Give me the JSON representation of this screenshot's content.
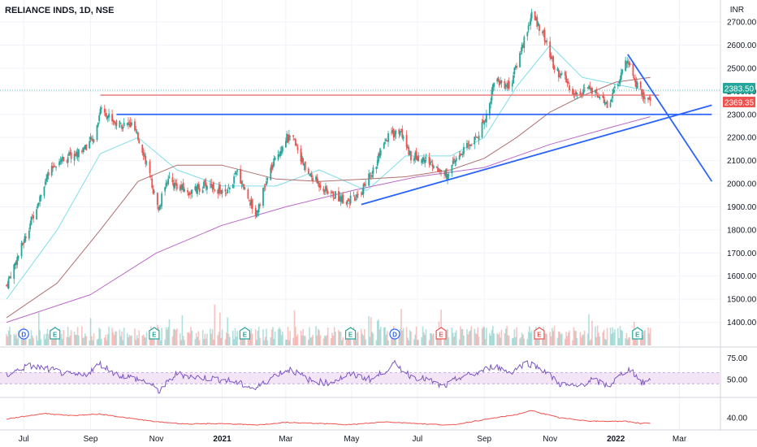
{
  "header": {
    "title": "RELIANCE INDS, 1D, NSE",
    "currency": "INR"
  },
  "price_tags": [
    {
      "label": "2383.50",
      "value": 2383.5,
      "color": "#26a69a"
    },
    {
      "label": "2369.35",
      "value": 2369.35,
      "color": "#ef5350"
    }
  ],
  "colors": {
    "up": "#26a69a",
    "down": "#ef5350",
    "trendline": "#2962ff",
    "resistance": "#e57373",
    "ma_fast": "#80deea",
    "ma_mid": "#b0706f",
    "ma_slow": "#ba68c8",
    "rsi_line": "#7e57c2",
    "rsi_band": "#f3e5f5",
    "indicator2": "#ef5350"
  },
  "chart_data": [
    {
      "type": "candlestick",
      "title": "RELIANCE INDS, 1D, NSE",
      "ylim": [
        1300,
        2760
      ],
      "x_ticks": [
        "Jul",
        "Sep",
        "Nov",
        "2021",
        "Mar",
        "May",
        "Jul",
        "Sep",
        "Nov",
        "2022",
        "Mar"
      ],
      "y_ticks": [
        1400,
        1500,
        1600,
        1700,
        1800,
        1900,
        2000,
        2100,
        2200,
        2300,
        2400,
        2500,
        2600,
        2700
      ],
      "y_tick_labels": [
        "1400.00",
        "1500.00",
        "1600.00",
        "1700.00",
        "1800.00",
        "1900.00",
        "2000.00",
        "2100.00",
        "2200.00",
        "2300.00",
        "2400.00",
        "2500.00",
        "2600.00",
        "2700.00"
      ],
      "price_anchors": [
        [
          "2020-06-15",
          1560
        ],
        [
          "2020-07-01",
          1750
        ],
        [
          "2020-07-20",
          2000
        ],
        [
          "2020-08-01",
          2100
        ],
        [
          "2020-08-20",
          2130
        ],
        [
          "2020-09-05",
          2200
        ],
        [
          "2020-09-10",
          2330
        ],
        [
          "2020-09-25",
          2260
        ],
        [
          "2020-10-10",
          2250
        ],
        [
          "2020-10-20",
          2140
        ],
        [
          "2020-11-03",
          1880
        ],
        [
          "2020-11-10",
          2020
        ],
        [
          "2020-12-01",
          1960
        ],
        [
          "2020-12-20",
          2000
        ],
        [
          "2021-01-05",
          1950
        ],
        [
          "2021-01-15",
          2050
        ],
        [
          "2021-02-01",
          1870
        ],
        [
          "2021-02-15",
          2060
        ],
        [
          "2021-03-01",
          2200
        ],
        [
          "2021-03-10",
          2180
        ],
        [
          "2021-03-20",
          2050
        ],
        [
          "2021-04-10",
          1960
        ],
        [
          "2021-04-25",
          1930
        ],
        [
          "2021-05-05",
          1930
        ],
        [
          "2021-05-20",
          2050
        ],
        [
          "2021-06-05",
          2210
        ],
        [
          "2021-06-15",
          2230
        ],
        [
          "2021-06-25",
          2120
        ],
        [
          "2021-07-10",
          2100
        ],
        [
          "2021-07-28",
          2040
        ],
        [
          "2021-08-10",
          2130
        ],
        [
          "2021-08-25",
          2200
        ],
        [
          "2021-09-05",
          2320
        ],
        [
          "2021-09-10",
          2450
        ],
        [
          "2021-09-25",
          2420
        ],
        [
          "2021-10-05",
          2580
        ],
        [
          "2021-10-15",
          2730
        ],
        [
          "2021-10-25",
          2660
        ],
        [
          "2021-11-05",
          2500
        ],
        [
          "2021-11-15",
          2450
        ],
        [
          "2021-11-25",
          2380
        ],
        [
          "2021-12-05",
          2420
        ],
        [
          "2021-12-15",
          2370
        ],
        [
          "2021-12-25",
          2340
        ],
        [
          "2022-01-05",
          2460
        ],
        [
          "2022-01-12",
          2550
        ],
        [
          "2022-01-20",
          2430
        ],
        [
          "2022-01-27",
          2380
        ],
        [
          "2022-02-02",
          2369
        ]
      ],
      "moving_averages": [
        {
          "name": "MA fast",
          "color": "#80deea",
          "points": [
            [
              "2020-06-15",
              1500
            ],
            [
              "2020-08-01",
              1800
            ],
            [
              "2020-09-10",
              2130
            ],
            [
              "2020-10-15",
              2200
            ],
            [
              "2020-11-20",
              2060
            ],
            [
              "2021-01-01",
              1990
            ],
            [
              "2021-02-20",
              1990
            ],
            [
              "2021-04-01",
              2060
            ],
            [
              "2021-05-15",
              1970
            ],
            [
              "2021-06-20",
              2120
            ],
            [
              "2021-08-01",
              2120
            ],
            [
              "2021-09-01",
              2200
            ],
            [
              "2021-10-01",
              2420
            ],
            [
              "2021-11-01",
              2600
            ],
            [
              "2021-12-01",
              2460
            ],
            [
              "2022-01-01",
              2430
            ],
            [
              "2022-02-02",
              2400
            ]
          ]
        },
        {
          "name": "MA mid",
          "color": "#b0706f",
          "points": [
            [
              "2020-06-15",
              1420
            ],
            [
              "2020-08-01",
              1570
            ],
            [
              "2020-09-10",
              1800
            ],
            [
              "2020-10-15",
              2010
            ],
            [
              "2020-11-20",
              2080
            ],
            [
              "2021-01-01",
              2080
            ],
            [
              "2021-02-20",
              2020
            ],
            [
              "2021-04-01",
              2010
            ],
            [
              "2021-05-15",
              2020
            ],
            [
              "2021-06-20",
              2030
            ],
            [
              "2021-08-01",
              2060
            ],
            [
              "2021-09-01",
              2110
            ],
            [
              "2021-10-01",
              2200
            ],
            [
              "2021-11-01",
              2310
            ],
            [
              "2021-12-01",
              2380
            ],
            [
              "2022-01-01",
              2440
            ],
            [
              "2022-02-02",
              2460
            ]
          ]
        },
        {
          "name": "MA slow",
          "color": "#ba68c8",
          "points": [
            [
              "2020-06-15",
              1400
            ],
            [
              "2020-09-01",
              1520
            ],
            [
              "2020-11-01",
              1700
            ],
            [
              "2021-01-01",
              1820
            ],
            [
              "2021-03-01",
              1900
            ],
            [
              "2021-05-01",
              1970
            ],
            [
              "2021-07-01",
              2030
            ],
            [
              "2021-09-01",
              2070
            ],
            [
              "2021-11-01",
              2170
            ],
            [
              "2022-01-01",
              2250
            ],
            [
              "2022-02-02",
              2290
            ]
          ]
        }
      ],
      "lines": [
        {
          "name": "resistance",
          "color": "#e57373",
          "from": [
            "2020-09-10",
            2383.5
          ],
          "to": [
            "2022-02-10",
            2383.5
          ]
        },
        {
          "name": "support",
          "color": "#2962ff",
          "from": [
            "2020-09-25",
            2300
          ],
          "to": [
            "2022-03-31",
            2300
          ]
        },
        {
          "name": "rising-trendline",
          "color": "#2962ff",
          "from": [
            "2021-05-10",
            1910
          ],
          "to": [
            "2022-03-31",
            2340
          ]
        },
        {
          "name": "falling-trendline",
          "color": "#2962ff",
          "from": [
            "2022-01-12",
            2560
          ],
          "to": [
            "2022-03-31",
            2010
          ]
        }
      ],
      "event_markers": [
        {
          "date": "2020-07-01",
          "label": "D",
          "kind": "dividend",
          "color": "#2962ff"
        },
        {
          "date": "2020-07-30",
          "label": "E",
          "kind": "earnings",
          "color": "#26a69a"
        },
        {
          "date": "2020-10-30",
          "label": "E",
          "kind": "earnings",
          "color": "#26a69a"
        },
        {
          "date": "2021-01-22",
          "label": "E",
          "kind": "earnings",
          "color": "#26a69a"
        },
        {
          "date": "2021-04-30",
          "label": "E",
          "kind": "earnings",
          "color": "#26a69a"
        },
        {
          "date": "2021-06-10",
          "label": "D",
          "kind": "dividend",
          "color": "#2962ff"
        },
        {
          "date": "2021-07-23",
          "label": "E",
          "kind": "earnings",
          "color": "#ef5350"
        },
        {
          "date": "2021-10-22",
          "label": "E",
          "kind": "earnings",
          "color": "#ef5350"
        },
        {
          "date": "2022-01-21",
          "label": "E",
          "kind": "earnings",
          "color": "#26a69a"
        }
      ]
    },
    {
      "type": "line",
      "name": "RSI",
      "ylim": [
        30,
        85
      ],
      "y_ticks": [
        75,
        50
      ],
      "y_tick_labels": [
        "75.00",
        "50.00"
      ],
      "band": [
        45,
        58
      ],
      "points": [
        [
          "2020-06-15",
          55
        ],
        [
          "2020-07-05",
          66
        ],
        [
          "2020-07-25",
          62
        ],
        [
          "2020-08-10",
          56
        ],
        [
          "2020-08-25",
          54
        ],
        [
          "2020-09-10",
          68
        ],
        [
          "2020-09-25",
          56
        ],
        [
          "2020-10-10",
          52
        ],
        [
          "2020-10-25",
          46
        ],
        [
          "2020-11-03",
          36
        ],
        [
          "2020-11-20",
          57
        ],
        [
          "2020-12-05",
          53
        ],
        [
          "2020-12-25",
          51
        ],
        [
          "2021-01-10",
          48
        ],
        [
          "2021-02-01",
          39
        ],
        [
          "2021-02-20",
          56
        ],
        [
          "2021-03-05",
          62
        ],
        [
          "2021-03-25",
          48
        ],
        [
          "2021-04-10",
          46
        ],
        [
          "2021-04-30",
          56
        ],
        [
          "2021-05-20",
          50
        ],
        [
          "2021-06-10",
          68
        ],
        [
          "2021-06-25",
          54
        ],
        [
          "2021-07-10",
          50
        ],
        [
          "2021-07-25",
          41
        ],
        [
          "2021-08-10",
          53
        ],
        [
          "2021-08-25",
          57
        ],
        [
          "2021-09-10",
          66
        ],
        [
          "2021-09-25",
          58
        ],
        [
          "2021-10-10",
          70
        ],
        [
          "2021-10-25",
          62
        ],
        [
          "2021-11-10",
          45
        ],
        [
          "2021-11-25",
          41
        ],
        [
          "2021-12-10",
          50
        ],
        [
          "2021-12-25",
          42
        ],
        [
          "2022-01-10",
          60
        ],
        [
          "2022-01-15",
          62
        ],
        [
          "2022-01-25",
          46
        ],
        [
          "2022-02-02",
          49
        ]
      ]
    },
    {
      "type": "line",
      "name": "Indicator 2",
      "ylim": [
        20,
        75
      ],
      "y_ticks": [
        40
      ],
      "y_tick_labels": [
        "40.00"
      ],
      "points": [
        [
          "2020-06-15",
          38
        ],
        [
          "2020-07-20",
          48
        ],
        [
          "2020-08-15",
          44
        ],
        [
          "2020-09-10",
          47
        ],
        [
          "2020-10-01",
          41
        ],
        [
          "2020-11-01",
          33
        ],
        [
          "2020-12-01",
          29
        ],
        [
          "2021-01-01",
          30
        ],
        [
          "2021-02-01",
          27
        ],
        [
          "2021-03-01",
          32
        ],
        [
          "2021-04-01",
          30
        ],
        [
          "2021-05-01",
          28
        ],
        [
          "2021-06-01",
          33
        ],
        [
          "2021-07-01",
          30
        ],
        [
          "2021-08-01",
          27
        ],
        [
          "2021-09-01",
          37
        ],
        [
          "2021-10-01",
          46
        ],
        [
          "2021-10-15",
          53
        ],
        [
          "2021-11-10",
          40
        ],
        [
          "2021-12-10",
          34
        ],
        [
          "2022-01-10",
          34
        ],
        [
          "2022-01-25",
          30
        ],
        [
          "2022-02-02",
          31
        ]
      ]
    }
  ]
}
